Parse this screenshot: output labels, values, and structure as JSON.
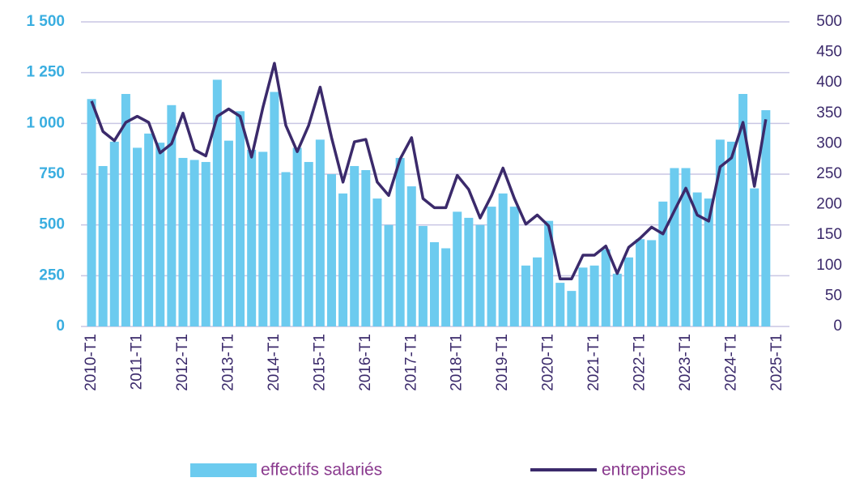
{
  "chart_data": {
    "type": "bar_line",
    "categories": [
      "2010-T1",
      null,
      null,
      null,
      "2011-T1",
      null,
      null,
      null,
      "2012-T1",
      null,
      null,
      null,
      "2013-T1",
      null,
      null,
      null,
      "2014-T1",
      null,
      null,
      null,
      "2015-T1",
      null,
      null,
      null,
      "2016-T1",
      null,
      null,
      null,
      "2017-T1",
      null,
      null,
      null,
      "2018-T1",
      null,
      null,
      null,
      "2019-T1",
      null,
      null,
      null,
      "2020-T1",
      null,
      null,
      null,
      "2021-T1",
      null,
      null,
      null,
      "2022-T1",
      null,
      null,
      null,
      "2023-T1",
      null,
      null,
      null,
      "2024-T1",
      null,
      null,
      null,
      "2025-T1"
    ],
    "series": [
      {
        "name": "effectifs salariés",
        "type": "bar",
        "color": "#6ccbef",
        "values": [
          1120,
          790,
          910,
          1145,
          880,
          950,
          905,
          1090,
          830,
          820,
          810,
          1215,
          915,
          1060,
          870,
          860,
          1155,
          760,
          880,
          810,
          920,
          750,
          655,
          790,
          770,
          630,
          500,
          830,
          690,
          495,
          415,
          385,
          565,
          535,
          500,
          590,
          655,
          590,
          300,
          340,
          520,
          215,
          175,
          290,
          300,
          380,
          260,
          340,
          430,
          425,
          615,
          780,
          780,
          660,
          630,
          920,
          910,
          1145,
          680,
          1065,
          null
        ]
      },
      {
        "name": "entreprises",
        "type": "line",
        "axis": "y2",
        "color": "#3b2a6b",
        "values": [
          370,
          320,
          305,
          335,
          345,
          335,
          285,
          300,
          350,
          290,
          280,
          345,
          357,
          345,
          278,
          360,
          432,
          330,
          287,
          330,
          393,
          310,
          237,
          303,
          307,
          237,
          215,
          275,
          310,
          210,
          195,
          195,
          248,
          225,
          178,
          215,
          260,
          210,
          168,
          183,
          165,
          78,
          78,
          117,
          117,
          132,
          87,
          130,
          145,
          163,
          152,
          190,
          227,
          183,
          173,
          262,
          277,
          335,
          230,
          340,
          null
        ]
      }
    ],
    "ylim": [
      0,
      1500
    ],
    "yticks": [
      0,
      250,
      500,
      750,
      {
        "value": 1000,
        "label": "1 000"
      },
      {
        "value": 1250,
        "label": "1 250"
      },
      {
        "value": 1500,
        "label": "1 500"
      }
    ],
    "y2lim": [
      0,
      500
    ],
    "y2ticks": [
      0,
      50,
      100,
      150,
      200,
      250,
      300,
      350,
      400,
      450,
      500
    ],
    "grid": true,
    "legend": "bottom"
  }
}
